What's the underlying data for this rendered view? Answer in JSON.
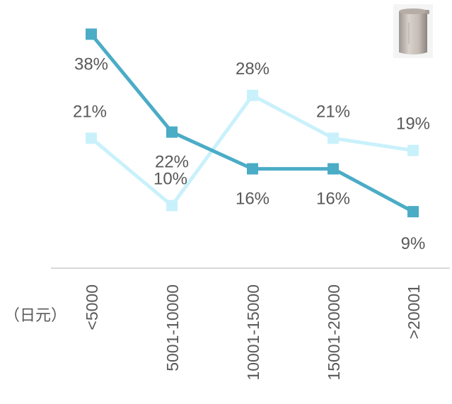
{
  "unit_label": "（日元）",
  "chart_data": {
    "type": "line",
    "categories": [
      "<5000",
      "5001-10000",
      "10001-15000",
      "15001-20000",
      ">20001"
    ],
    "series": [
      {
        "values": [
          38,
          22,
          16,
          16,
          9
        ],
        "labels": [
          "38%",
          "22%",
          "16%",
          "16%",
          "9%"
        ],
        "color": "#4bacc6"
      },
      {
        "values": [
          21,
          10,
          28,
          21,
          19
        ],
        "labels": [
          "21%",
          "10%",
          "28%",
          "21%",
          "19%"
        ],
        "color": "#c9f1fb"
      }
    ],
    "ylim": [
      0,
      45
    ],
    "grid": false,
    "legend": "none"
  }
}
